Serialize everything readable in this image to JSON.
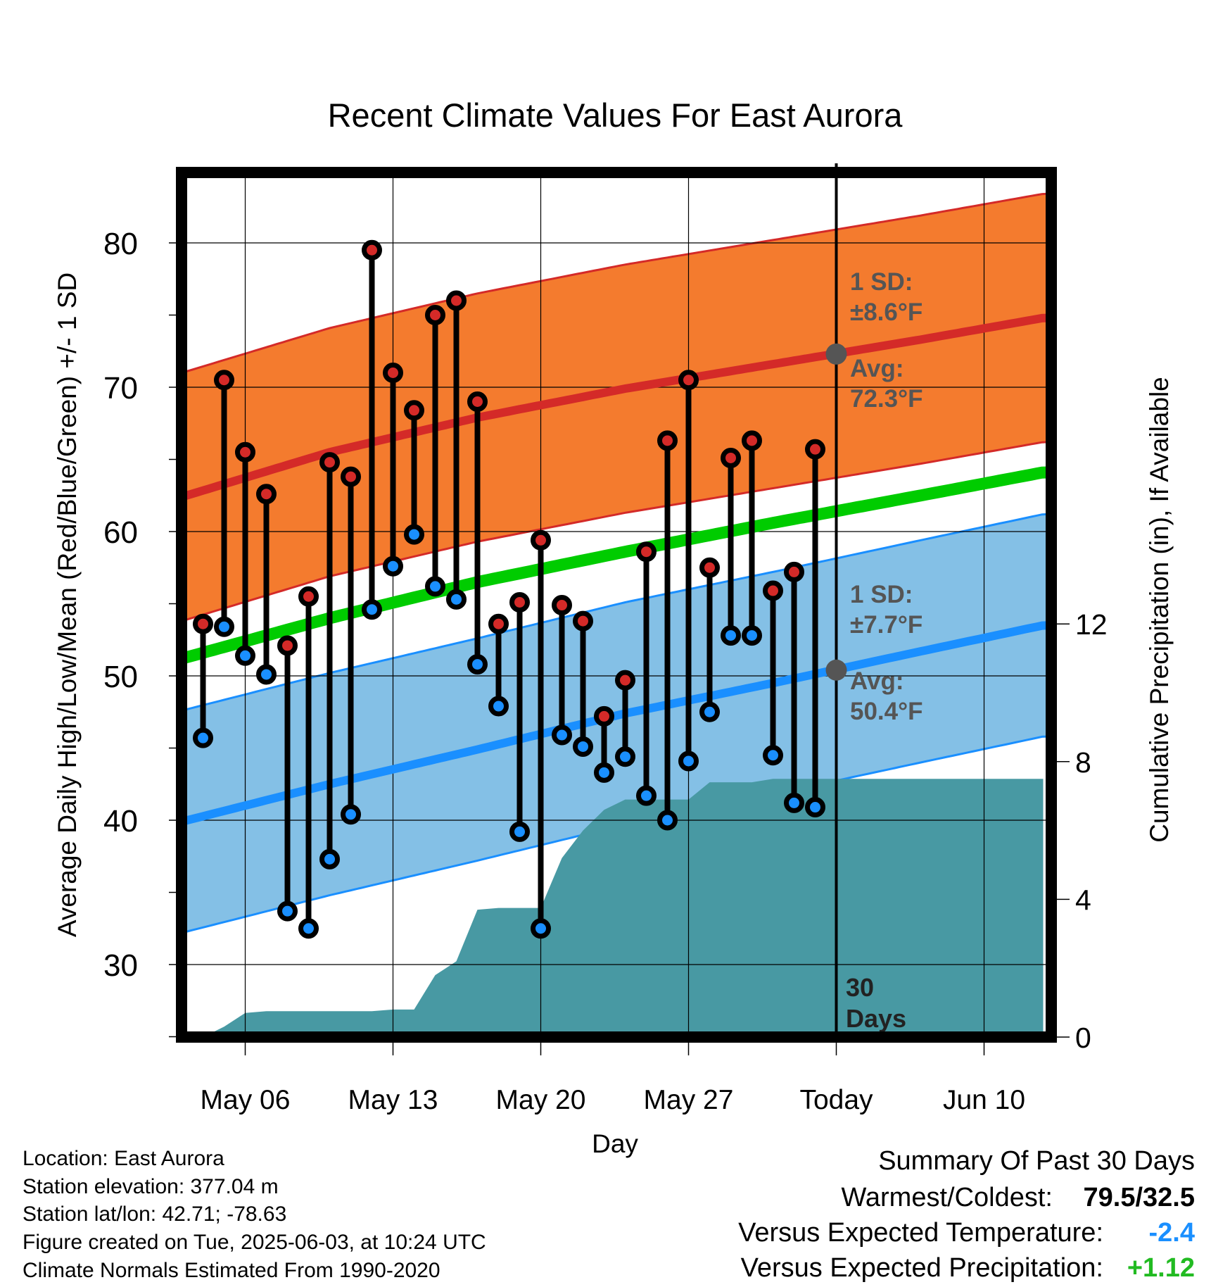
{
  "chart_data": {
    "type": "line",
    "title": "Recent Climate Values For East Aurora",
    "xlabel": "Day",
    "ylabel": "Average Daily High/Low/Mean (Red/Blue/Green) +/- 1 SD",
    "y2label": "Cumulative Precipitation (in), If Available",
    "ylim": [
      25,
      84
    ],
    "y2lim": [
      0,
      24
    ],
    "yticks": [
      "30",
      "40",
      "50",
      "60",
      "70",
      "80"
    ],
    "y2ticks": [
      "0",
      "4",
      "8",
      "12"
    ],
    "xticks": [
      {
        "day": 6,
        "label": "May 06"
      },
      {
        "day": 13,
        "label": "May 13"
      },
      {
        "day": 20,
        "label": "May 20"
      },
      {
        "day": 27,
        "label": "May 27"
      },
      {
        "day": 34,
        "label": "Today"
      },
      {
        "day": 41,
        "label": "Jun 10"
      }
    ],
    "xlim": [
      2.8,
      43.8
    ],
    "grid": true,
    "today_day": 34,
    "today_label": [
      "30",
      "Days"
    ],
    "colors": {
      "high": "#d42a28",
      "low": "#1a8fff",
      "mean": "#00cc00",
      "high_band": "#f47b2e",
      "low_band": "#84c0e6",
      "precip": "#4899a3",
      "annot": "#555555"
    },
    "normals": {
      "days": [
        3,
        10,
        17,
        24,
        31,
        38,
        43.8
      ],
      "high_avg": [
        62.4,
        65.5,
        67.9,
        69.9,
        71.6,
        73.3,
        74.8
      ],
      "high_sd": 8.6,
      "low_avg": [
        39.9,
        42.5,
        44.9,
        47.4,
        49.5,
        51.7,
        53.5
      ],
      "low_sd": 7.7,
      "mean_avg": [
        51.2,
        54.0,
        56.5,
        58.6,
        60.6,
        62.5,
        64.1
      ]
    },
    "daily": {
      "days": [
        4,
        5,
        6,
        7,
        8,
        9,
        10,
        11,
        12,
        13,
        14,
        15,
        16,
        17,
        18,
        19,
        20,
        21,
        22,
        23,
        24,
        25,
        26,
        27,
        28,
        29,
        30,
        31,
        32,
        33
      ],
      "highs": [
        53.6,
        70.5,
        65.5,
        62.6,
        52.1,
        55.5,
        64.8,
        63.8,
        79.5,
        71.0,
        68.4,
        75.0,
        76.0,
        69.0,
        53.6,
        55.1,
        59.4,
        54.9,
        53.8,
        47.2,
        49.7,
        58.6,
        66.3,
        70.5,
        57.5,
        65.1,
        66.3,
        55.9,
        57.2,
        65.7
      ],
      "lows": [
        45.7,
        53.4,
        51.4,
        50.1,
        33.7,
        32.5,
        37.3,
        40.4,
        54.6,
        57.6,
        59.8,
        56.2,
        55.3,
        50.8,
        47.9,
        39.2,
        32.5,
        45.9,
        45.1,
        43.3,
        44.4,
        41.7,
        40.0,
        44.1,
        47.5,
        52.8,
        52.8,
        44.5,
        41.2,
        40.9
      ]
    },
    "precip": {
      "days": [
        3,
        4,
        5,
        6,
        7,
        8,
        9,
        10,
        11,
        12,
        13,
        14,
        15,
        16,
        17,
        18,
        19,
        20,
        21,
        22,
        23,
        24,
        25,
        26,
        27,
        28,
        29,
        30,
        31,
        32,
        33,
        34,
        43.8
      ],
      "values": [
        0,
        0,
        0.3,
        0.7,
        0.75,
        0.75,
        0.75,
        0.75,
        0.75,
        0.75,
        0.8,
        0.8,
        1.8,
        2.2,
        3.7,
        3.75,
        3.75,
        3.75,
        5.2,
        6.0,
        6.6,
        6.9,
        6.9,
        6.9,
        6.9,
        7.4,
        7.4,
        7.4,
        7.5,
        7.5,
        7.5,
        7.5,
        7.5
      ]
    },
    "annotations": {
      "high_sd_label": "1 SD:",
      "high_sd_value": "±8.6°F",
      "high_avg_label": "Avg:",
      "high_avg_value": "72.3°F",
      "high_avg": 72.3,
      "low_sd_label": "1 SD:",
      "low_sd_value": "±7.7°F",
      "low_avg_label": "Avg:",
      "low_avg_value": "50.4°F",
      "low_avg": 50.4
    }
  },
  "info": {
    "location": "Location: East Aurora",
    "elevation": "Station elevation: 377.04 m",
    "latlon": "Station lat/lon: 42.71; -78.63",
    "created": "Figure created on Tue, 2025-06-03, at 10:24 UTC",
    "normals": "Climate Normals Estimated From 1990-2020"
  },
  "summary": {
    "heading": "Summary Of Past 30 Days",
    "warm_cold_label": "Warmest/Coldest:",
    "warm_cold_value": "79.5/32.5",
    "temp_label": "Versus Expected Temperature:",
    "temp_value": "-2.4",
    "precip_label": "Versus Expected Precipitation:",
    "precip_value": "+1.12",
    "temp_color": "#1a8fff",
    "precip_color": "#22bb22"
  }
}
